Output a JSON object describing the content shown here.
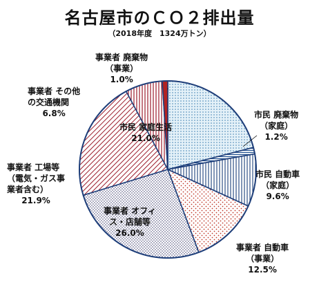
{
  "chart_data": {
    "type": "pie",
    "title": "名古屋市のＣＯ２排出量",
    "subtitle": "（2018年度　1324万トン）",
    "unit": "%",
    "slices": [
      {
        "lines": [
          "市民 家庭生活"
        ],
        "pct_label": "21.0%",
        "value": 21.0,
        "pattern": "dots"
      },
      {
        "lines": [
          "市民 廃棄物",
          "（家庭）"
        ],
        "pct_label": "1.2%",
        "value": 1.2,
        "pattern": "hlines"
      },
      {
        "lines": [
          "市民 自動車",
          "（家庭）"
        ],
        "pct_label": "9.6%",
        "value": 9.6,
        "pattern": "vlines"
      },
      {
        "lines": [
          "事業者 自動車",
          "（事業）"
        ],
        "pct_label": "12.5%",
        "value": 12.5,
        "pattern": "sparse-dots"
      },
      {
        "lines": [
          "事業者 オフィ",
          "ス・店舗等"
        ],
        "pct_label": "26.0%",
        "value": 26.0,
        "pattern": "fine-dots"
      },
      {
        "lines": [
          "事業者 工場等",
          "（電気・ガス事",
          "業者含む）"
        ],
        "pct_label": "21.9%",
        "value": 21.9,
        "pattern": "diag"
      },
      {
        "lines": [
          "事業者 その他",
          "の交通機関"
        ],
        "pct_label": "6.8%",
        "value": 6.8,
        "pattern": "vlines-red"
      },
      {
        "lines": [
          "事業者 廃棄物",
          "（事業）"
        ],
        "pct_label": "1.0%",
        "value": 1.0,
        "pattern": "solid-red"
      }
    ]
  }
}
